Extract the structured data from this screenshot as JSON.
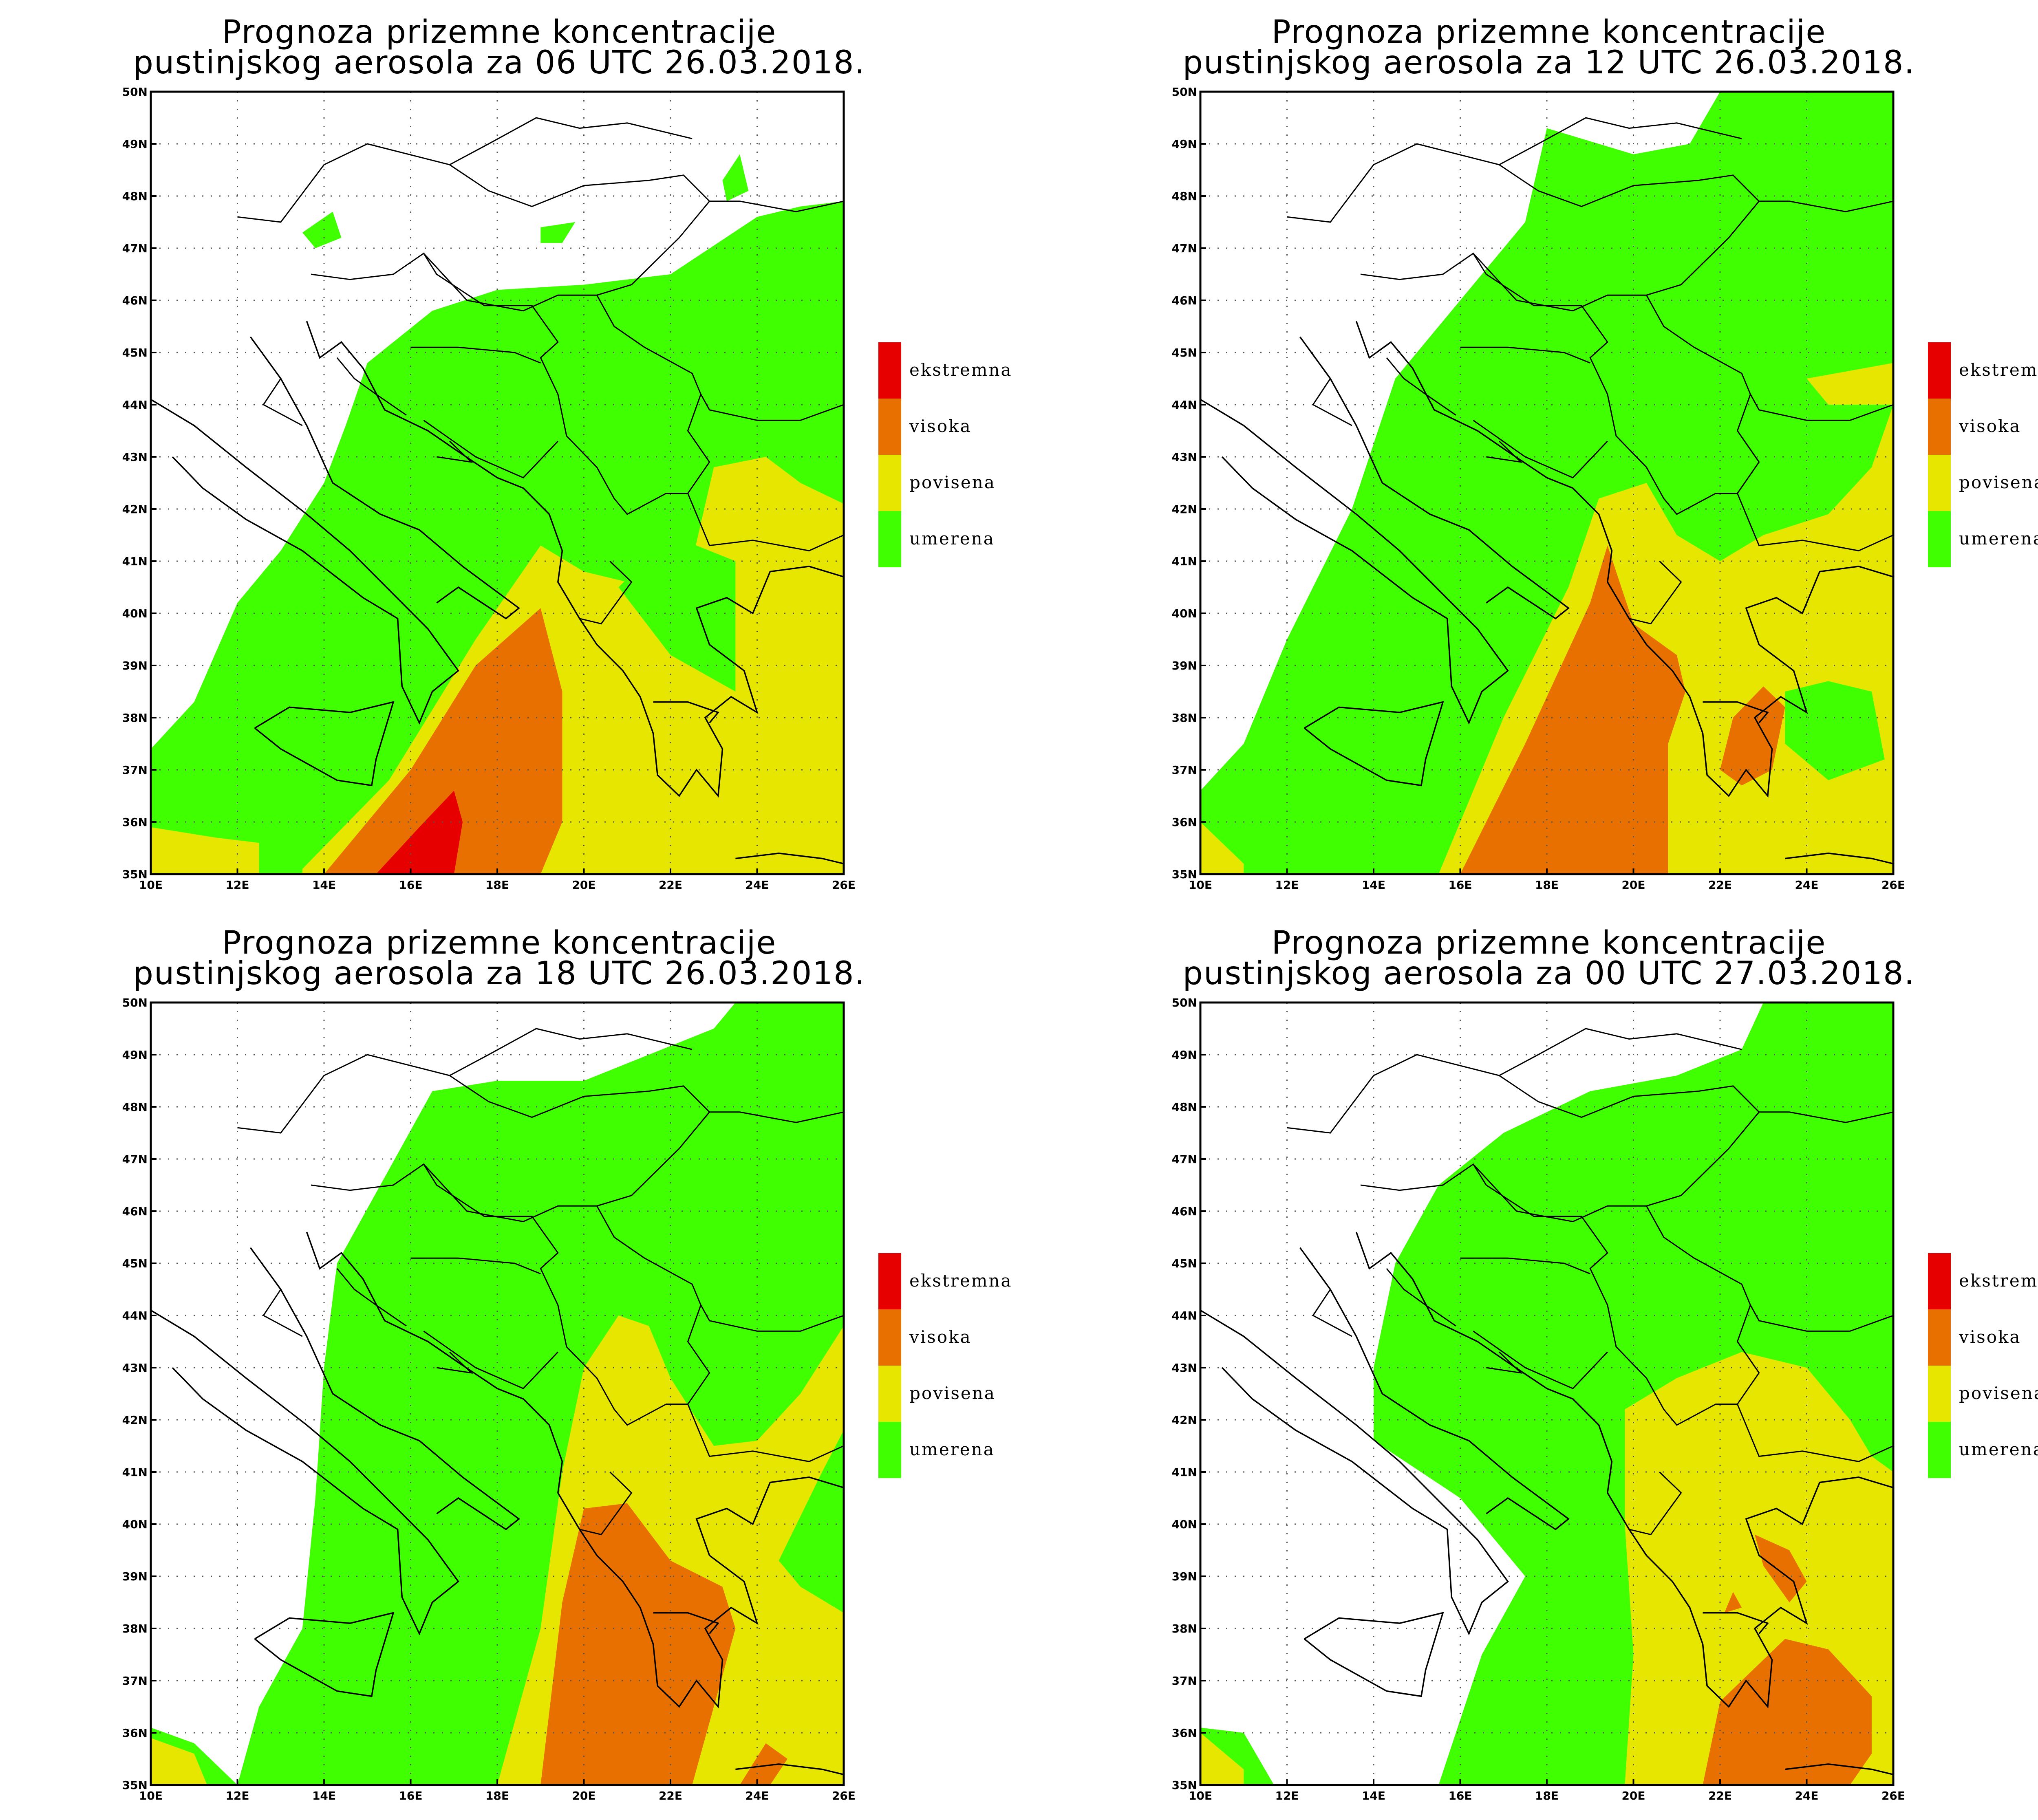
{
  "colors": {
    "ekstremna": "#e60000",
    "visoka": "#e87000",
    "povisena": "#e6e600",
    "umerena": "#40ff00",
    "background": "#ffffff"
  },
  "legend": [
    {
      "key": "ekstremna",
      "label": "ekstremna"
    },
    {
      "key": "visoka",
      "label": "visoka"
    },
    {
      "key": "povisena",
      "label": "povisena"
    },
    {
      "key": "umerena",
      "label": "umerena"
    }
  ],
  "axes": {
    "lon_labels": [
      "10E",
      "12E",
      "14E",
      "16E",
      "18E",
      "20E",
      "22E",
      "24E",
      "26E"
    ],
    "lat_labels": [
      "35N",
      "36N",
      "37N",
      "38N",
      "39N",
      "40N",
      "41N",
      "42N",
      "43N",
      "44N",
      "45N",
      "46N",
      "47N",
      "48N",
      "49N",
      "50N"
    ],
    "lon_range": [
      10,
      26
    ],
    "lat_range": [
      35,
      50
    ]
  },
  "panels": [
    {
      "title_line1": "Prognoza prizemne koncentracije",
      "title_line2": "pustinjskog aerosola za 06 UTC 26.03.2018.",
      "regions": [
        {
          "level": "umerena",
          "pts": [
            [
              10,
              37.4
            ],
            [
              11,
              38.3
            ],
            [
              12,
              40.2
            ],
            [
              13,
              41.2
            ],
            [
              14,
              42.5
            ],
            [
              14.5,
              43.6
            ],
            [
              15,
              44.8
            ],
            [
              16.5,
              45.8
            ],
            [
              18,
              46.2
            ],
            [
              20,
              46.3
            ],
            [
              22,
              46.5
            ],
            [
              24,
              47.6
            ],
            [
              25,
              47.8
            ],
            [
              26,
              47.9
            ],
            [
              26,
              35
            ],
            [
              10,
              35
            ]
          ]
        },
        {
          "level": "umerena",
          "pts": [
            [
              13.5,
              47.3
            ],
            [
              14.2,
              47.7
            ],
            [
              14.4,
              47.2
            ],
            [
              13.8,
              47.0
            ]
          ]
        },
        {
          "level": "umerena",
          "pts": [
            [
              19,
              47.4
            ],
            [
              19.8,
              47.5
            ],
            [
              19.5,
              47.1
            ],
            [
              19,
              47.1
            ]
          ]
        },
        {
          "level": "umerena",
          "pts": [
            [
              23.2,
              48.3
            ],
            [
              23.6,
              48.8
            ],
            [
              23.8,
              48.1
            ],
            [
              23.3,
              47.9
            ]
          ]
        },
        {
          "level": "povisena",
          "pts": [
            [
              10,
              35.9
            ],
            [
              11.5,
              35.7
            ],
            [
              12.5,
              35.6
            ],
            [
              12.5,
              35
            ],
            [
              10,
              35
            ]
          ]
        },
        {
          "level": "povisena",
          "pts": [
            [
              13.5,
              35.1
            ],
            [
              15.5,
              36.8
            ],
            [
              17.5,
              39.5
            ],
            [
              19,
              41.3
            ],
            [
              20,
              40.8
            ],
            [
              21.5,
              40.5
            ],
            [
              22.5,
              41
            ],
            [
              23,
              42.8
            ],
            [
              24.2,
              43
            ],
            [
              25,
              42.5
            ],
            [
              26,
              42.1
            ],
            [
              26,
              35
            ],
            [
              13.5,
              35
            ]
          ]
        },
        {
          "level": "umerena",
          "pts": [
            [
              20.8,
              40.5
            ],
            [
              22,
              39.2
            ],
            [
              23.5,
              38.5
            ],
            [
              23.5,
              41
            ],
            [
              22,
              41.5
            ]
          ]
        },
        {
          "level": "visoka",
          "pts": [
            [
              14,
              35
            ],
            [
              16,
              37
            ],
            [
              17.5,
              39
            ],
            [
              19,
              40.1
            ],
            [
              19.5,
              38.5
            ],
            [
              19.5,
              36
            ],
            [
              19,
              35
            ]
          ]
        },
        {
          "level": "ekstremna",
          "pts": [
            [
              15.2,
              35
            ],
            [
              16.2,
              35.9
            ],
            [
              17,
              36.6
            ],
            [
              17.2,
              36
            ],
            [
              17,
              35
            ],
            [
              15.2,
              35
            ]
          ]
        }
      ]
    },
    {
      "title_line1": "Prognoza prizemne koncentracije",
      "title_line2": "pustinjskog aerosola za 12 UTC 26.03.2018.",
      "regions": [
        {
          "level": "umerena",
          "pts": [
            [
              10,
              36.6
            ],
            [
              11,
              37.5
            ],
            [
              12,
              39.5
            ],
            [
              13.5,
              42
            ],
            [
              14.5,
              44.5
            ],
            [
              16,
              46
            ],
            [
              17.5,
              47.5
            ],
            [
              18,
              49.3
            ],
            [
              20,
              48.8
            ],
            [
              21.3,
              49
            ],
            [
              22,
              50
            ],
            [
              26,
              50
            ],
            [
              26,
              35
            ],
            [
              10,
              35
            ]
          ]
        },
        {
          "level": "povisena",
          "pts": [
            [
              10,
              36
            ],
            [
              11,
              35.2
            ],
            [
              11,
              35
            ],
            [
              10,
              35
            ]
          ]
        },
        {
          "level": "povisena",
          "pts": [
            [
              15.5,
              35
            ],
            [
              17,
              38
            ],
            [
              18.5,
              40.5
            ],
            [
              19.2,
              42.2
            ],
            [
              20.3,
              42.5
            ],
            [
              21,
              41.5
            ],
            [
              22,
              41
            ],
            [
              23,
              41.5
            ],
            [
              24.5,
              41.9
            ],
            [
              25.5,
              42.8
            ],
            [
              26,
              44
            ],
            [
              26,
              35
            ],
            [
              15.5,
              35
            ]
          ]
        },
        {
          "level": "povisena",
          "pts": [
            [
              24,
              44.5
            ],
            [
              26,
              44.8
            ],
            [
              26,
              44
            ],
            [
              24.5,
              44
            ]
          ]
        },
        {
          "level": "umerena",
          "pts": [
            [
              23.5,
              38.5
            ],
            [
              24.5,
              38.7
            ],
            [
              25.5,
              38.5
            ],
            [
              25.8,
              37.2
            ],
            [
              24.5,
              36.8
            ],
            [
              23.5,
              37.5
            ]
          ]
        },
        {
          "level": "visoka",
          "pts": [
            [
              16,
              35
            ],
            [
              17.5,
              37.5
            ],
            [
              19,
              40.2
            ],
            [
              19.4,
              41.3
            ],
            [
              20,
              39.8
            ],
            [
              21,
              39.2
            ],
            [
              21.2,
              38.5
            ],
            [
              20.8,
              37.5
            ],
            [
              20.8,
              35
            ],
            [
              16,
              35
            ]
          ]
        },
        {
          "level": "visoka",
          "pts": [
            [
              22,
              37
            ],
            [
              22.3,
              38
            ],
            [
              23,
              38.6
            ],
            [
              23.5,
              38.2
            ],
            [
              23.2,
              37
            ],
            [
              22.5,
              36.7
            ]
          ]
        }
      ]
    },
    {
      "title_line1": "Prognoza prizemne koncentracije",
      "title_line2": "pustinjskog aerosola za 18 UTC 26.03.2018.",
      "regions": [
        {
          "level": "umerena",
          "pts": [
            [
              10,
              36.1
            ],
            [
              11,
              35.8
            ],
            [
              12,
              35
            ],
            [
              12.5,
              36.5
            ],
            [
              13.5,
              38
            ],
            [
              13.8,
              40.5
            ],
            [
              14,
              43
            ],
            [
              14.3,
              45
            ],
            [
              15.5,
              46.8
            ],
            [
              16.5,
              48.3
            ],
            [
              18,
              48.5
            ],
            [
              20,
              48.5
            ],
            [
              23,
              49.5
            ],
            [
              23.5,
              50
            ],
            [
              26,
              50
            ],
            [
              26,
              35
            ],
            [
              10,
              35
            ]
          ]
        },
        {
          "level": "povisena",
          "pts": [
            [
              10,
              35.9
            ],
            [
              11,
              35.6
            ],
            [
              11.3,
              35
            ],
            [
              10,
              35
            ]
          ]
        },
        {
          "level": "povisena",
          "pts": [
            [
              18,
              35
            ],
            [
              19,
              38
            ],
            [
              19.5,
              41
            ],
            [
              20,
              43
            ],
            [
              20.8,
              44
            ],
            [
              21.5,
              43.8
            ],
            [
              22,
              42.8
            ],
            [
              23,
              41.5
            ],
            [
              24,
              41.6
            ],
            [
              25,
              42.5
            ],
            [
              26,
              43.8
            ],
            [
              26,
              35
            ],
            [
              18,
              35
            ]
          ]
        },
        {
          "level": "umerena",
          "pts": [
            [
              24.5,
              39.3
            ],
            [
              25.5,
              41
            ],
            [
              26,
              41.8
            ],
            [
              26,
              38.3
            ],
            [
              25,
              38.8
            ]
          ]
        },
        {
          "level": "visoka",
          "pts": [
            [
              19,
              35
            ],
            [
              19.5,
              38.5
            ],
            [
              20,
              40.3
            ],
            [
              21,
              40.4
            ],
            [
              22,
              39.3
            ],
            [
              23.2,
              38.8
            ],
            [
              23.5,
              38
            ],
            [
              23,
              36.5
            ],
            [
              22.5,
              35
            ],
            [
              19,
              35
            ]
          ]
        },
        {
          "level": "visoka",
          "pts": [
            [
              23.6,
              35
            ],
            [
              24.2,
              35.8
            ],
            [
              24.7,
              35.5
            ],
            [
              24.3,
              35
            ]
          ]
        }
      ]
    },
    {
      "title_line1": "Prognoza prizemne koncentracije",
      "title_line2": "pustinjskog aerosola za 00 UTC 27.03.2018.",
      "regions": [
        {
          "level": "umerena",
          "pts": [
            [
              10,
              36.1
            ],
            [
              11,
              36
            ],
            [
              11.7,
              35
            ],
            [
              10,
              35
            ]
          ]
        },
        {
          "level": "umerena",
          "pts": [
            [
              15.5,
              35
            ],
            [
              16.5,
              37.5
            ],
            [
              17.5,
              39
            ],
            [
              16,
              40.5
            ],
            [
              14,
              41.6
            ],
            [
              14,
              43
            ],
            [
              14.5,
              45
            ],
            [
              15.5,
              46.5
            ],
            [
              17,
              47.5
            ],
            [
              19,
              48.3
            ],
            [
              21,
              48.6
            ],
            [
              22.5,
              49.1
            ],
            [
              23,
              50
            ],
            [
              26,
              50
            ],
            [
              26,
              35
            ],
            [
              15.5,
              35
            ]
          ]
        },
        {
          "level": "povisena",
          "pts": [
            [
              10,
              36
            ],
            [
              11,
              35.3
            ],
            [
              11,
              35
            ],
            [
              10,
              35
            ]
          ]
        },
        {
          "level": "povisena",
          "pts": [
            [
              19.8,
              35
            ],
            [
              20,
              37.5
            ],
            [
              19.8,
              40
            ],
            [
              19.8,
              42.2
            ],
            [
              21,
              42.8
            ],
            [
              22.5,
              43.3
            ],
            [
              24,
              43
            ],
            [
              25,
              42
            ],
            [
              25.5,
              41.3
            ],
            [
              26,
              41
            ],
            [
              26,
              35
            ],
            [
              19.8,
              35
            ]
          ]
        },
        {
          "level": "visoka",
          "pts": [
            [
              21.6,
              35
            ],
            [
              22,
              36.6
            ],
            [
              23.5,
              37.8
            ],
            [
              24.5,
              37.6
            ],
            [
              25.5,
              36.7
            ],
            [
              25.5,
              35.6
            ],
            [
              25,
              35
            ],
            [
              21.6,
              35
            ]
          ]
        },
        {
          "level": "visoka",
          "pts": [
            [
              22.8,
              39.8
            ],
            [
              23.6,
              39.5
            ],
            [
              24,
              38.9
            ],
            [
              23.6,
              38.5
            ],
            [
              23,
              39.2
            ]
          ]
        },
        {
          "level": "visoka",
          "pts": [
            [
              22.1,
              38.3
            ],
            [
              22.3,
              38.7
            ],
            [
              22.5,
              38.4
            ]
          ]
        }
      ]
    }
  ]
}
